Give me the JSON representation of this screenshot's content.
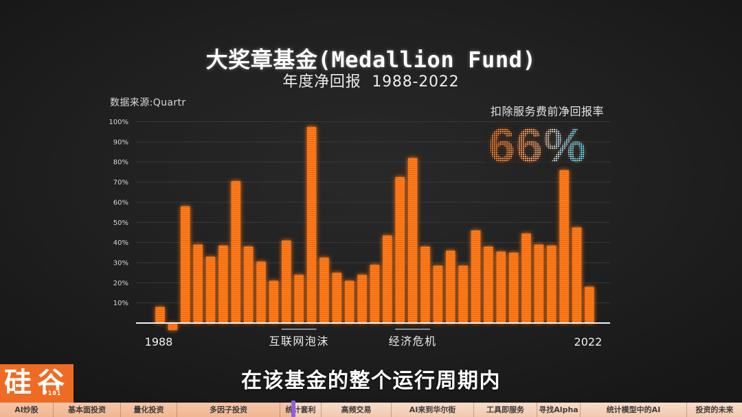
{
  "colors": {
    "bar": "#ff7d1e",
    "bar_shade": "#ea6610",
    "logo": "#ef6b23",
    "callout_from": "#ff7b1c",
    "callout_to": "#56d8ea",
    "progress_marker": "#8f5fe0"
  },
  "chart_data": {
    "type": "bar",
    "title": "大奖章基金(Medallion Fund)",
    "subtitle": "年度净回报 1988-2022",
    "source": "数据来源:Quartr",
    "x": [
      1988,
      1989,
      1990,
      1991,
      1992,
      1993,
      1994,
      1995,
      1996,
      1997,
      1998,
      1999,
      2000,
      2001,
      2002,
      2003,
      2004,
      2005,
      2006,
      2007,
      2008,
      2009,
      2010,
      2011,
      2012,
      2013,
      2014,
      2015,
      2016,
      2017,
      2018,
      2019,
      2020,
      2021,
      2022
    ],
    "values": [
      8,
      -3.5,
      58,
      39,
      33,
      38.5,
      70.5,
      38,
      30.5,
      21,
      41,
      24,
      97.5,
      32.5,
      25,
      21,
      24,
      29,
      43.5,
      72.5,
      82,
      38,
      28.5,
      36,
      28.5,
      46,
      38,
      35.5,
      35,
      44.5,
      39,
      38.5,
      76,
      47.5,
      18
    ],
    "ylim": [
      0,
      100
    ],
    "y_ticks": [
      10,
      20,
      30,
      40,
      50,
      60,
      70,
      80,
      90,
      100
    ],
    "y_tick_labels": [
      "10%",
      "20%",
      "30%",
      "40%",
      "50%",
      "60%",
      "70%",
      "80%",
      "90%",
      "100%"
    ],
    "x_tick_labels": [
      {
        "x": 1988,
        "label": "1988"
      },
      {
        "x": 2022,
        "label": "2022"
      }
    ],
    "annotations": [
      {
        "label": "互联网泡沫",
        "span": [
          1998,
          2000
        ]
      },
      {
        "label": "经济危机",
        "span": [
          2007,
          2009
        ]
      }
    ],
    "grid": true
  },
  "callout": {
    "label": "扣除服务费前净回报率",
    "value": "66%"
  },
  "video": {
    "caption": "在该基金的整个运行周期内",
    "logo": {
      "main": "硅谷",
      "sub": "101"
    },
    "played_percent": 39.5,
    "chapters": [
      "AI炒股",
      "基本面投资",
      "量化投资",
      "多因子投资",
      "统计套利",
      "高频交易",
      "AI来到华尔街",
      "工具即服务",
      "寻找Alpha",
      "统计模型中的AI",
      "投资的未来"
    ]
  }
}
